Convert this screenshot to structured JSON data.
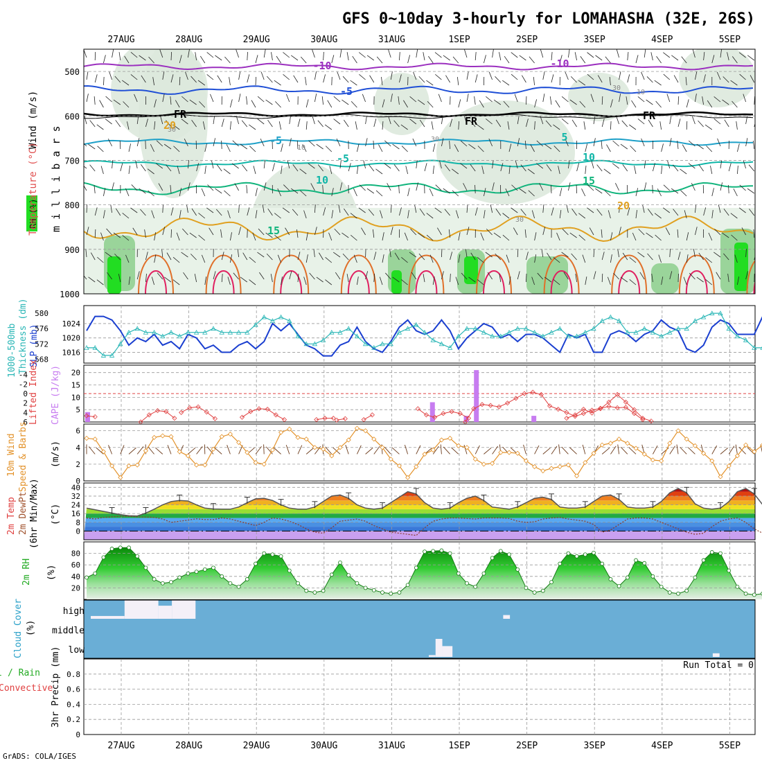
{
  "title": "GFS 0~10day 3-hourly for LOMAHASHA (32E, 26S)",
  "credit": "GrADS: COLA/IGES",
  "dates": [
    "27AUG",
    "28AUG",
    "29AUG",
    "30AUG",
    "31AUG",
    "1SEP",
    "2SEP",
    "3SEP",
    "4SEP",
    "5SEP"
  ],
  "colors": {
    "wind_isotach": "#9b2fbf",
    "isotach_mid": "#1f4fd6",
    "freezing": "#000000",
    "temp_cool": "#1ea0c8",
    "temp_teal": "#10b6a8",
    "temp_green": "#10b47c",
    "temp_warm": "#e0a020",
    "rh_green": "#22dd22",
    "slp": "#1a3fd0",
    "thickness": "#29b6b6",
    "cape": "#c77cf0",
    "lifted_index": "#e04040",
    "wind10m": "#e3922a",
    "cloud_bg": "#6aaed6"
  },
  "labels": {
    "upper_y": "m i l l i b a r s",
    "upper_wind": "Wind (m/s)",
    "upper_temp": "Temperature (°C)",
    "upper_rh": "RH (%)",
    "thickness": "1000-500mb",
    "thickness2": "Thickness (dm)",
    "slp": "SLP (mb)",
    "li": "Lifted Index",
    "cape": "CAPE (J/kg)",
    "wind10": "10m Wind",
    "wind10b": "Speed & Barbs",
    "wind10unit": "(m/s)",
    "temp2m": "2m Temp",
    "dewpt": "2m DewPt",
    "minmax": "(6hr Min/Max)",
    "tempunit": "(°C)",
    "rh2m": "2m RH",
    "rhunit": "(%)",
    "cloud": "Cloud Cover",
    "cloudunit": "(%)",
    "cloud_high": "high",
    "cloud_mid": "middle",
    "cloud_low": "low",
    "precip": "3hr Precip (mm)",
    "precip_total": "Total / Rain",
    "precip_conv": "Convective",
    "run_total": "Run Total = 0"
  },
  "chart_data": [
    {
      "type": "line",
      "name": "upper-air cross section",
      "ylabel": "millibars",
      "yticks": [
        500,
        600,
        700,
        800,
        900,
        1000
      ],
      "isotherm_labels": [
        "-10",
        "-10",
        "-5",
        "FR",
        "FR",
        "FR",
        "-5",
        "5",
        "-5",
        "10",
        "10",
        "15",
        "15",
        "20",
        "20"
      ],
      "rh_labels": [
        "30",
        "30",
        "30",
        "10",
        "30",
        "10"
      ]
    },
    {
      "type": "line",
      "name": "SLP / thickness",
      "slp_ticks": [
        1016,
        1020,
        1024
      ],
      "thickness_ticks": [
        568,
        572,
        576,
        580
      ],
      "slp": [
        1022,
        1026,
        1026,
        1025,
        1022,
        1018,
        1020,
        1019,
        1021,
        1018,
        1019,
        1017,
        1021,
        1020,
        1017,
        1018,
        1016,
        1016,
        1018,
        1019,
        1017,
        1019,
        1024,
        1022,
        1024,
        1021,
        1018,
        1017,
        1015,
        1015,
        1018,
        1019,
        1023,
        1019,
        1017,
        1016,
        1019,
        1023,
        1025,
        1022,
        1021,
        1022,
        1025,
        1022,
        1017,
        1020,
        1022,
        1024,
        1023,
        1020,
        1021,
        1019,
        1021,
        1021,
        1020,
        1018,
        1016,
        1021,
        1020,
        1021,
        1016,
        1016,
        1021,
        1022,
        1021,
        1019,
        1021,
        1022,
        1025,
        1023,
        1022,
        1017,
        1016,
        1018,
        1023,
        1025,
        1024,
        1021,
        1021,
        1021,
        1026,
        1028
      ],
      "thickness": [
        571,
        571,
        569,
        569,
        572,
        575,
        576,
        575,
        575,
        574,
        575,
        574,
        575,
        575,
        575,
        576,
        575,
        575,
        575,
        575,
        577,
        579,
        578,
        579,
        578,
        574,
        572,
        572,
        573,
        575,
        575,
        576,
        574,
        572,
        571,
        572,
        572,
        575,
        576,
        577,
        575,
        573,
        572,
        571,
        574,
        576,
        576,
        575,
        574,
        574,
        575,
        576,
        576,
        575,
        574,
        575,
        576,
        574,
        574,
        575,
        576,
        578,
        579,
        578,
        575,
        575,
        576,
        575,
        574,
        575,
        576,
        576,
        578,
        579,
        580,
        580,
        576,
        574,
        573,
        571,
        571,
        571
      ]
    },
    {
      "type": "bar",
      "name": "CAPE / Lifted Index",
      "cape_ticks": [
        5,
        10,
        15,
        20
      ],
      "li_ticks": [
        -4,
        -2,
        0,
        2,
        4,
        6
      ],
      "cape_bars": [
        {
          "day": 0.0,
          "value": 4
        },
        {
          "day": 5.1,
          "value": 8
        },
        {
          "day": 5.6,
          "value": 2.5
        },
        {
          "day": 5.75,
          "value": 21
        },
        {
          "day": 6.6,
          "value": 2.5
        }
      ],
      "lifted_index_segments": [
        {
          "start": 0.0,
          "values": [
            4.7,
            4.9
          ]
        },
        {
          "start": 0.8,
          "values": [
            6,
            4.5,
            3.6,
            3.8,
            5.2
          ]
        },
        {
          "start": 1.4,
          "values": [
            4,
            3,
            2.8,
            3.9,
            5.3
          ]
        },
        {
          "start": 2.3,
          "values": [
            5,
            3.8,
            3.2,
            3.3,
            4.5,
            5.5
          ]
        },
        {
          "start": 3.4,
          "values": [
            5.5,
            5.2,
            5.2
          ]
        },
        {
          "start": 3.7,
          "values": [
            5.6,
            5.3
          ]
        },
        {
          "start": 4.1,
          "values": [
            5.5,
            4.5
          ]
        },
        {
          "start": 4.9,
          "values": [
            3.2,
            4.5,
            5,
            4.2,
            3.8,
            4.2,
            5.2
          ]
        },
        {
          "start": 5.6,
          "values": [
            6,
            3.2,
            2.3,
            2.5,
            2.8,
            2,
            1,
            0,
            -0.3,
            0.2,
            2.6,
            3.3,
            4,
            4.8,
            4.2,
            3.5,
            3.1,
            2.7,
            3,
            2.9,
            4.2,
            5.5
          ]
        },
        {
          "start": 7.1,
          "values": [
            5.2,
            4.5,
            3.3,
            4.1,
            3.2,
            1.8,
            0.2,
            1.8,
            3.4,
            5.2,
            5.8
          ]
        }
      ]
    },
    {
      "type": "line",
      "name": "10m wind speed",
      "yticks": [
        0,
        2,
        4,
        6
      ],
      "speed": [
        5.1,
        5.0,
        3.5,
        1.8,
        0.4,
        1.8,
        1.9,
        3.6,
        5.2,
        5.4,
        5.3,
        3.5,
        3.0,
        1.9,
        1.9,
        3.8,
        5.3,
        5.6,
        4.6,
        3.4,
        2.2,
        2.0,
        3.7,
        5.8,
        6.2,
        5.2,
        5.0,
        4.0,
        3.8,
        3.0,
        4.0,
        4.9,
        6.3,
        6.0,
        5.0,
        4.0,
        2.6,
        1.8,
        0.4,
        1.7,
        3.2,
        3.7,
        4.9,
        5.1,
        4.2,
        4.0,
        2.6,
        2.0,
        2.1,
        3.4,
        3.4,
        3.3,
        2.4,
        1.7,
        1.2,
        1.5,
        1.7,
        1.9,
        0.6,
        2.2,
        3.3,
        4.3,
        4.5,
        5.0,
        4.5,
        3.9,
        3.2,
        2.5,
        2.4,
        4.5,
        6.0,
        5.0,
        4.2,
        3.3,
        2.4,
        0.5,
        1.8,
        3.0,
        4.3,
        3.5,
        4.3,
        4.5
      ]
    },
    {
      "type": "area",
      "name": "2m temperature / dew point",
      "yticks": [
        0,
        8,
        16,
        24,
        32,
        40
      ],
      "temp": [
        21,
        19.5,
        18,
        16.5,
        15,
        14,
        13.8,
        16.5,
        20,
        24,
        27,
        28,
        27.5,
        24,
        21,
        20.2,
        20,
        20,
        22,
        26,
        29.5,
        30,
        28,
        24,
        21,
        20,
        20,
        22,
        27,
        32,
        33,
        30,
        24,
        21,
        20,
        21,
        26,
        31,
        36,
        34,
        26,
        21,
        20,
        21,
        26,
        30,
        32,
        28,
        22,
        21,
        20,
        22,
        26,
        30,
        31,
        29,
        22,
        21,
        21,
        22,
        27,
        32,
        33,
        29,
        22,
        21,
        21,
        22,
        27,
        35,
        39,
        35,
        25,
        21,
        20,
        21,
        27,
        36,
        39,
        34,
        24,
        20
      ],
      "dewpoint": [
        12,
        11,
        12.5,
        13,
        13.5,
        13.5,
        13,
        12.8,
        12.5,
        11,
        8,
        9,
        10,
        11.2,
        10.5,
        10.5,
        12,
        11,
        9,
        7,
        5,
        8,
        12,
        11,
        9,
        6,
        2,
        -1,
        -2,
        3,
        9,
        10,
        11,
        9,
        5,
        2,
        -1,
        -2,
        -3,
        -4,
        3,
        9,
        11,
        12,
        12,
        11.5,
        11,
        12,
        12,
        12,
        11.5,
        9,
        8,
        8.5,
        11,
        12,
        12.5,
        11,
        10,
        9,
        6,
        -1,
        1,
        6,
        11,
        12,
        12,
        11,
        8,
        5,
        2,
        -1,
        -3,
        -2,
        4,
        9,
        11,
        12,
        8,
        2,
        -2,
        -1
      ]
    },
    {
      "type": "area",
      "name": "2m relative humidity",
      "yticks": [
        20,
        40,
        60,
        80
      ],
      "rh": [
        38,
        45,
        73,
        88,
        90,
        90,
        75,
        55,
        35,
        28,
        30,
        38,
        45,
        48,
        52,
        55,
        40,
        28,
        22,
        35,
        62,
        80,
        78,
        75,
        50,
        28,
        15,
        12,
        15,
        43,
        64,
        42,
        28,
        20,
        16,
        12,
        10,
        12,
        25,
        55,
        83,
        84,
        85,
        80,
        45,
        28,
        22,
        45,
        72,
        84,
        78,
        52,
        20,
        12,
        15,
        30,
        62,
        80,
        75,
        78,
        81,
        62,
        35,
        23,
        38,
        68,
        63,
        40,
        22,
        12,
        10,
        15,
        38,
        68,
        82,
        80,
        50,
        22,
        10,
        8,
        10,
        35,
        72,
        84,
        75,
        58
      ]
    },
    {
      "type": "bar",
      "name": "cloud cover",
      "categories": [
        "high",
        "middle",
        "low"
      ],
      "high_blocks": [
        {
          "from": 0.0,
          "to": 0.5,
          "value": 15
        },
        {
          "from": 0.5,
          "to": 1.0,
          "value": 100
        },
        {
          "from": 1.0,
          "to": 1.2,
          "value": 70
        },
        {
          "from": 1.2,
          "to": 1.55,
          "value": 100
        },
        {
          "from": 6.1,
          "to": 6.2,
          "value": 20
        }
      ],
      "low_blocks": [
        {
          "from": 5.0,
          "to": 5.1,
          "value": 10
        },
        {
          "from": 5.1,
          "to": 5.2,
          "value": 100
        },
        {
          "from": 5.2,
          "to": 5.35,
          "value": 60
        },
        {
          "from": 9.2,
          "to": 9.3,
          "value": 20
        }
      ]
    },
    {
      "type": "bar",
      "name": "3hr precipitation",
      "yticks": [
        0,
        0.2,
        0.4,
        0.6,
        0.8
      ],
      "ylim": [
        0,
        1
      ],
      "values": []
    }
  ]
}
